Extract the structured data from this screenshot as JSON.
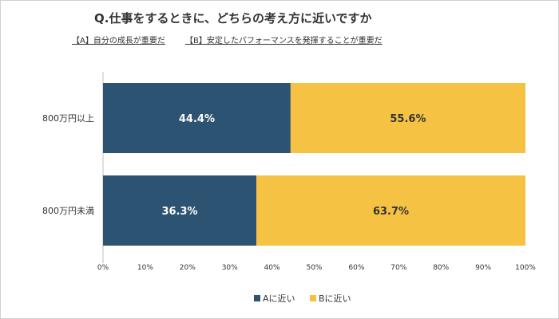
{
  "header": {
    "title": "Q.仕事をするときに、どちらの考え方に近いですか",
    "option_a": "【A】自分の成長が重要だ",
    "option_b": "【B】安定したパフォーマンスを発揮することが重要だ"
  },
  "chart_data": {
    "type": "bar",
    "orientation": "horizontal",
    "stacked": true,
    "categories": [
      "800万円以上",
      "800万円未満"
    ],
    "series": [
      {
        "name": "Aに近い",
        "values": [
          44.4,
          36.3
        ],
        "labels": [
          "44.4%",
          "36.3%"
        ],
        "color": "#2d5372",
        "label_color": "#ffffff"
      },
      {
        "name": "Bに近い",
        "values": [
          55.6,
          63.7
        ],
        "labels": [
          "55.6%",
          "63.7%"
        ],
        "color": "#f6c244",
        "label_color": "#333333"
      }
    ],
    "xlim": [
      0,
      100
    ],
    "xticks": [
      "0%",
      "10%",
      "20%",
      "30%",
      "40%",
      "50%",
      "60%",
      "70%",
      "80%",
      "90%",
      "100%"
    ],
    "grid": false,
    "legend": "bottom"
  }
}
